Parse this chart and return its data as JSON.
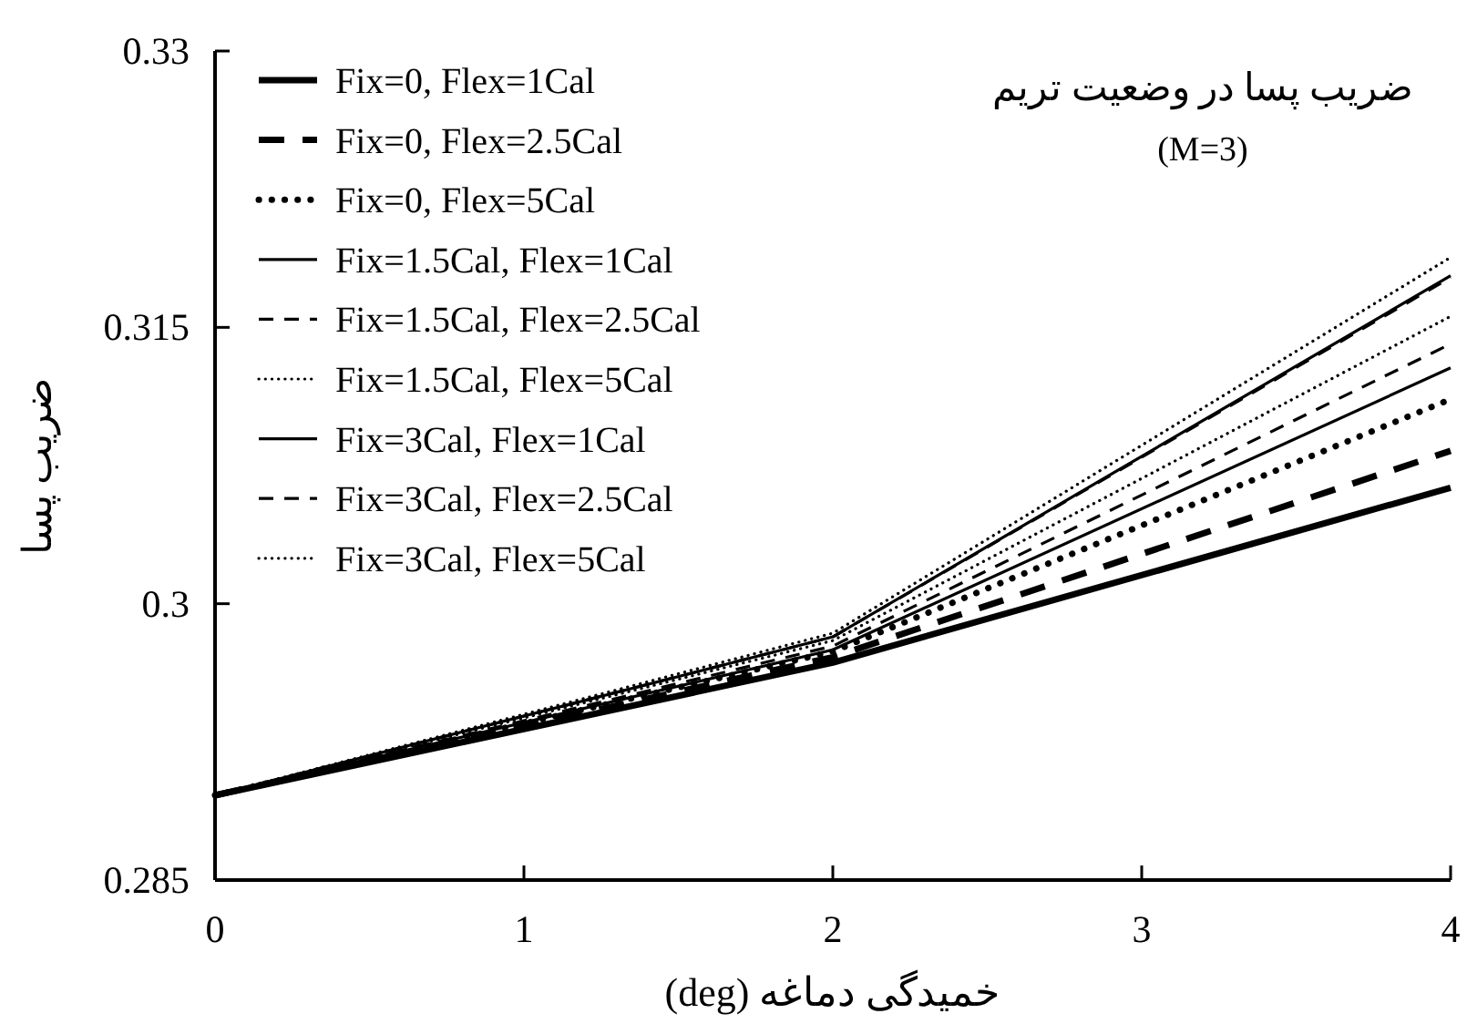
{
  "chart_data": {
    "type": "line",
    "title": "ضریب پسا در وضعیت تریم",
    "subtitle": "(M=3)",
    "xlabel": "خمیدگی دماغه (deg)",
    "ylabel": "ضریب پسا",
    "x": [
      0,
      2,
      4
    ],
    "xlim": [
      0,
      4
    ],
    "xticks": [
      0,
      1,
      2,
      3,
      4
    ],
    "ylim": [
      0.285,
      0.33
    ],
    "yticks": [
      0.285,
      0.3,
      0.315,
      0.33
    ],
    "grid": false,
    "legend": "top left",
    "marker": "none",
    "series": [
      {
        "name": "Fix=0, Flex=1Cal",
        "color": "#000000",
        "line_style": "solid",
        "values": [
          0.2896,
          0.2968,
          0.3063
        ]
      },
      {
        "name": "Fix=0, Flex=2.5Cal",
        "color": "#000000",
        "line_style": "dashed",
        "values": [
          0.2896,
          0.2971,
          0.3083
        ]
      },
      {
        "name": "Fix=0, Flex=5Cal",
        "color": "#000000",
        "line_style": "dotted",
        "values": [
          0.2896,
          0.2974,
          0.3111
        ]
      },
      {
        "name": "Fix=1.5Cal, Flex=1Cal",
        "color": "#000000",
        "line_style": "solid",
        "values": [
          0.2896,
          0.2975,
          0.3128
        ]
      },
      {
        "name": "Fix=1.5Cal, Flex=2.5Cal",
        "color": "#000000",
        "line_style": "dashed",
        "values": [
          0.2896,
          0.2977,
          0.3141
        ]
      },
      {
        "name": "Fix=1.5Cal, Flex=5Cal",
        "color": "#000000",
        "line_style": "dotted",
        "values": [
          0.2896,
          0.298,
          0.3156
        ]
      },
      {
        "name": "Fix=3Cal, Flex=1Cal",
        "color": "#000000",
        "line_style": "solid",
        "values": [
          0.2896,
          0.2982,
          0.3178
        ]
      },
      {
        "name": "Fix=3Cal, Flex=2.5Cal",
        "color": "#000000",
        "line_style": "dashed",
        "values": [
          0.2896,
          0.2982,
          0.3177
        ]
      },
      {
        "name": "Fix=3Cal, Flex=5Cal",
        "color": "#000000",
        "line_style": "dotted",
        "values": [
          0.2896,
          0.2984,
          0.3188
        ]
      }
    ]
  }
}
